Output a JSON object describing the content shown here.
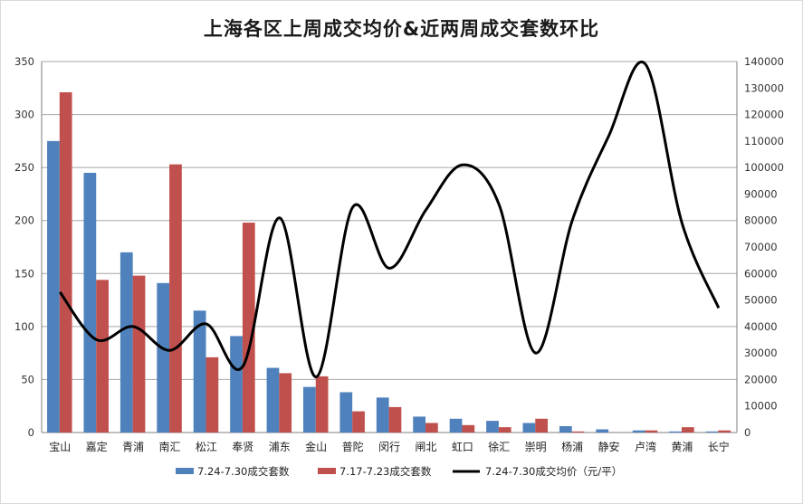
{
  "chart_data": {
    "type": "bar",
    "title": "上海各区上周成交均价&近两周成交套数环比",
    "categories": [
      "宝山",
      "嘉定",
      "青浦",
      "南汇",
      "松江",
      "奉贤",
      "浦东",
      "金山",
      "普陀",
      "闵行",
      "闸北",
      "虹口",
      "徐汇",
      "崇明",
      "杨浦",
      "静安",
      "卢湾",
      "黄浦",
      "长宁"
    ],
    "series": [
      {
        "name": "7.24-7.30成交套数",
        "axis": "left",
        "color": "#4f81bd",
        "values": [
          275,
          245,
          170,
          141,
          115,
          91,
          61,
          43,
          38,
          33,
          15,
          13,
          11,
          9,
          6,
          3,
          2,
          1,
          1
        ]
      },
      {
        "name": "7.17-7.23成交套数",
        "axis": "left",
        "color": "#c0504d",
        "values": [
          321,
          144,
          148,
          253,
          71,
          198,
          56,
          53,
          20,
          24,
          9,
          7,
          5,
          13,
          1,
          0,
          2,
          5,
          2
        ]
      },
      {
        "name": "7.24-7.30成交均价（元/平）",
        "axis": "right",
        "type": "line",
        "color": "#000000",
        "values": [
          53000,
          35000,
          40000,
          31000,
          41000,
          25000,
          81000,
          21000,
          85000,
          62000,
          84000,
          101000,
          86000,
          30000,
          80000,
          112000,
          139000,
          79000,
          47000
        ]
      }
    ],
    "y_left": {
      "range": [
        0,
        350
      ],
      "ticks": [
        "0",
        "50",
        "100",
        "150",
        "200",
        "250",
        "300",
        "350"
      ]
    },
    "y_right": {
      "range": [
        0,
        140000
      ],
      "ticks": [
        "0",
        "10000",
        "20000",
        "30000",
        "40000",
        "50000",
        "60000",
        "70000",
        "80000",
        "90000",
        "100000",
        "110000",
        "120000",
        "130000",
        "140000"
      ]
    },
    "grid": true,
    "legend": "bottom"
  }
}
